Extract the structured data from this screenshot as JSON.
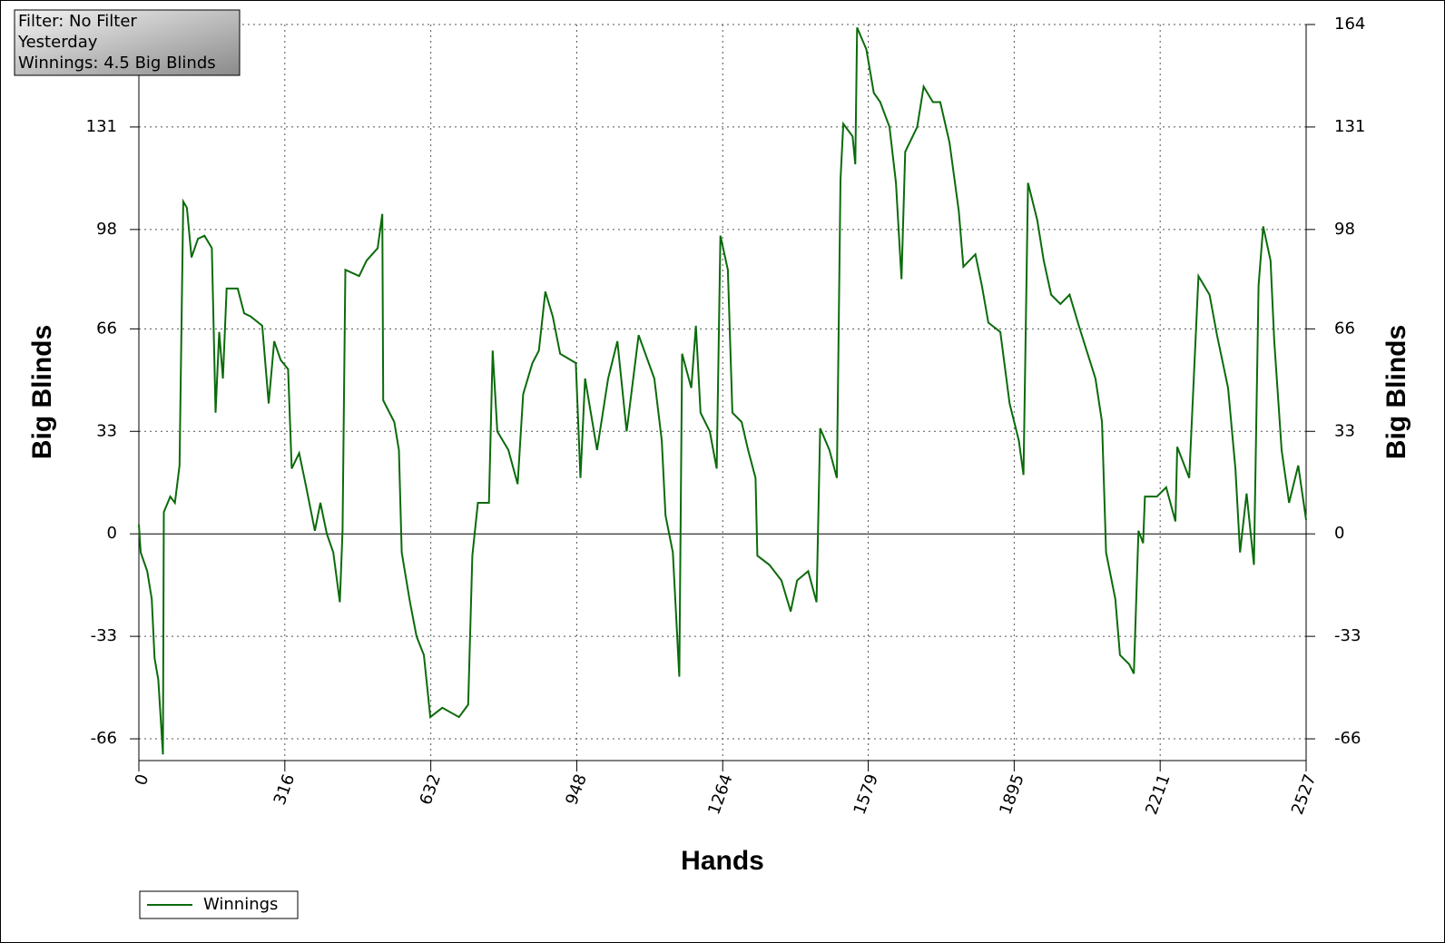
{
  "chart_data": {
    "type": "line",
    "info_lines": [
      "Filter: No Filter",
      "Yesterday",
      "Winnings: 4.5 Big Blinds"
    ],
    "x_label": "Hands",
    "y_label": "Big Blinds",
    "y2_label": "Big Blinds",
    "xlim": [
      0,
      2527
    ],
    "xticks": [
      0,
      316,
      632,
      948,
      1264,
      1579,
      1895,
      2211,
      2527
    ],
    "ylim": [
      -73,
      164
    ],
    "yticks": [
      -66,
      -33,
      0,
      33,
      66,
      98,
      131,
      164
    ],
    "y2lim": [
      -73,
      164
    ],
    "y2ticks": [
      -66,
      -33,
      0,
      33,
      66,
      98,
      131,
      164
    ],
    "grid": true,
    "legend": "bottom-left",
    "x": [
      0,
      4,
      18,
      28,
      34,
      42,
      52,
      54,
      68,
      78,
      88,
      96,
      104,
      114,
      128,
      142,
      158,
      166,
      174,
      182,
      190,
      214,
      228,
      242,
      267,
      281,
      293,
      307,
      323,
      331,
      347,
      361,
      381,
      393,
      407,
      421,
      435,
      441,
      447,
      477,
      493,
      517,
      527,
      529,
      553,
      563,
      569,
      587,
      601,
      617,
      631,
      657,
      693,
      713,
      722,
      734,
      758,
      766,
      776,
      800,
      820,
      832,
      852,
      866,
      880,
      896,
      912,
      946,
      956,
      966,
      992,
      1016,
      1036,
      1056,
      1082,
      1116,
      1132,
      1140,
      1156,
      1170,
      1176,
      1196,
      1206,
      1216,
      1236,
      1251,
      1259,
      1275,
      1285,
      1305,
      1319,
      1335,
      1339,
      1365,
      1391,
      1411,
      1425,
      1449,
      1467,
      1475,
      1495,
      1511,
      1519,
      1525,
      1545,
      1551,
      1555,
      1575,
      1591,
      1605,
      1625,
      1639,
      1651,
      1659,
      1685,
      1699,
      1719,
      1735,
      1755,
      1775,
      1785,
      1811,
      1825,
      1839,
      1865,
      1885,
      1905,
      1915,
      1925,
      1945,
      1959,
      1975,
      1995,
      2015,
      2035,
      2071,
      2085,
      2094,
      2114,
      2124,
      2144,
      2154,
      2164,
      2174,
      2178,
      2204,
      2224,
      2244,
      2248,
      2274,
      2294,
      2318,
      2334,
      2358,
      2374,
      2384,
      2398,
      2414,
      2424,
      2434,
      2450,
      2458,
      2474,
      2490,
      2510,
      2527
    ],
    "series": [
      {
        "name": "Winnings",
        "color": "#0b6b0b",
        "values": [
          3,
          -6,
          -12,
          -21,
          -40,
          -47,
          -71,
          7,
          12,
          10,
          22,
          107,
          105,
          89,
          95,
          96,
          92,
          39,
          65,
          50,
          79,
          79,
          71,
          70,
          67,
          42,
          62,
          56,
          53,
          21,
          26,
          16,
          1,
          10,
          0,
          -6,
          -22,
          1,
          85,
          83,
          88,
          92,
          103,
          43,
          36,
          27,
          -6,
          -22,
          -33,
          -39,
          -59,
          -56,
          -59,
          -55,
          -7,
          10,
          10,
          59,
          33,
          27,
          16,
          45,
          55,
          59,
          78,
          70,
          58,
          55,
          18,
          50,
          27,
          50,
          62,
          33,
          64,
          50,
          30,
          6,
          -6,
          -46,
          58,
          47,
          67,
          39,
          33,
          21,
          96,
          85,
          39,
          36,
          27,
          18,
          -7,
          -10,
          -15,
          -25,
          -15,
          -12,
          -22,
          34,
          27,
          18,
          114,
          132,
          128,
          119,
          163,
          156,
          142,
          139,
          131,
          113,
          82,
          123,
          131,
          144,
          139,
          139,
          126,
          104,
          86,
          90,
          80,
          68,
          65,
          42,
          30,
          19,
          113,
          101,
          88,
          77,
          74,
          77,
          67,
          50,
          36,
          -6,
          -21,
          -39,
          -42,
          -45,
          1,
          -3,
          12,
          12,
          15,
          4,
          28,
          18,
          83,
          77,
          64,
          47,
          21,
          -6,
          13,
          -10,
          80,
          99,
          88,
          62,
          27,
          10,
          22,
          4.5
        ]
      }
    ]
  }
}
